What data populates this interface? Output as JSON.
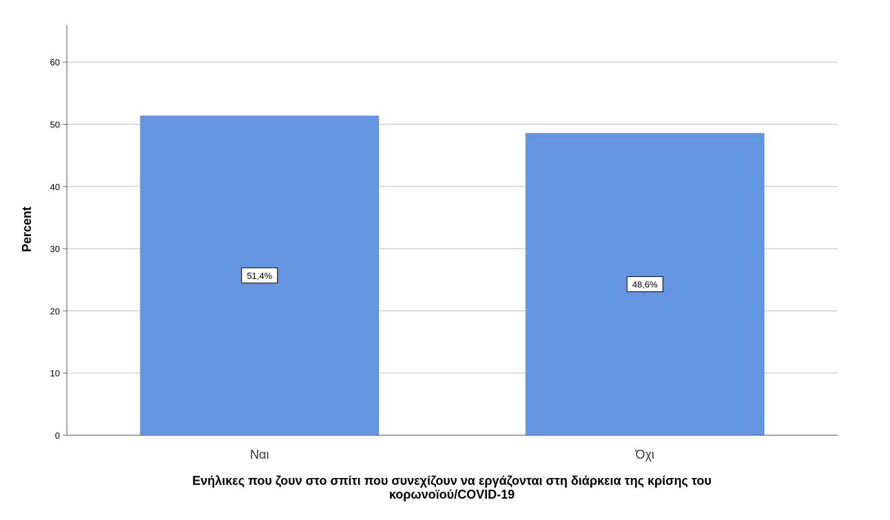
{
  "chart_data": {
    "type": "bar",
    "categories": [
      "Ναι",
      "Όχι"
    ],
    "values": [
      51.4,
      48.6
    ],
    "value_labels": [
      "51,4%",
      "48,6%"
    ],
    "title": "",
    "xlabel_lines": [
      "Ενήλικες που ζουν στο σπίτι που συνεχίζουν να εργάζονται στη διάρκεια της κρίσης του",
      "κορωνοϊού/COVID-19"
    ],
    "ylabel": "Percent",
    "ylim": [
      0,
      66
    ],
    "yticks": [
      0,
      10,
      20,
      30,
      40,
      50,
      60
    ],
    "grid": true,
    "legend": "none",
    "bar_color": "#6495e0",
    "gridline_color": "#c8c8c8",
    "axis_color": "#6e6e6e"
  }
}
